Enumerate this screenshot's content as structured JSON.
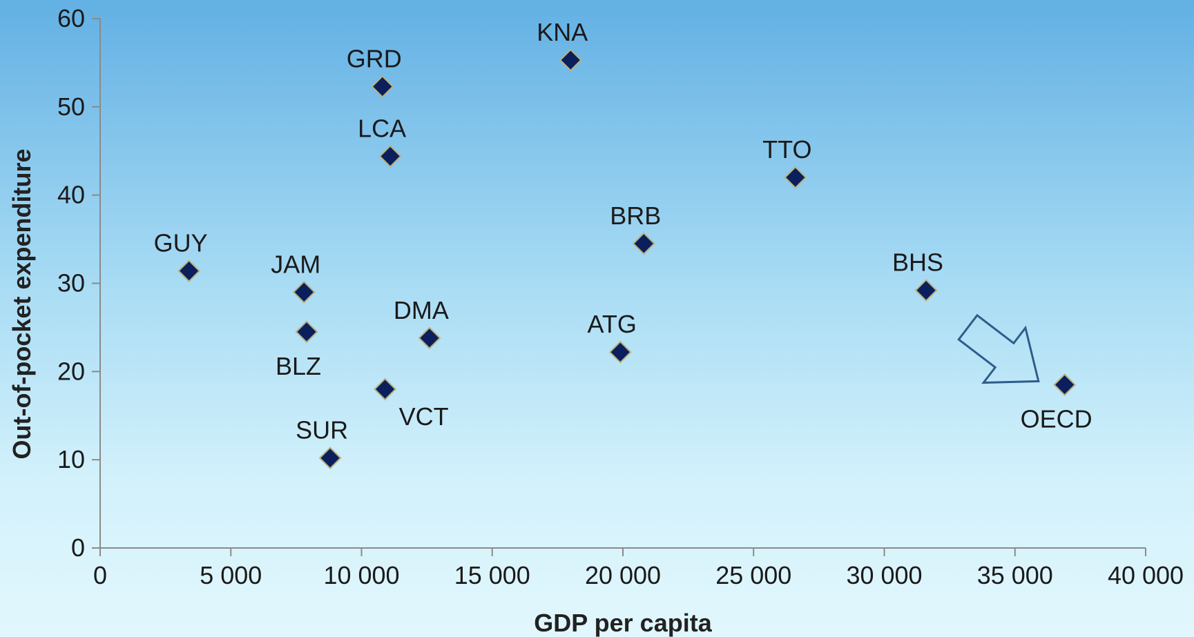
{
  "chart_data": {
    "type": "scatter",
    "xlabel": "GDP per capita",
    "ylabel": "Out-of-pocket expenditure",
    "xlim": [
      0,
      40000
    ],
    "ylim": [
      0,
      60
    ],
    "x_ticks": [
      0,
      5000,
      10000,
      15000,
      20000,
      25000,
      30000,
      35000,
      40000
    ],
    "x_tick_labels": [
      "0",
      "5 000",
      "10 000",
      "15 000",
      "20 000",
      "25 000",
      "30 000",
      "35 000",
      "40 000"
    ],
    "y_ticks": [
      0,
      10,
      20,
      30,
      40,
      50,
      60
    ],
    "y_tick_labels": [
      "0",
      "10",
      "20",
      "30",
      "40",
      "50",
      "60"
    ],
    "grid": false,
    "marker_color": "#0b1f5c",
    "marker_edge_color": "#b9b17f",
    "points": [
      {
        "label": "GUY",
        "x": 3400,
        "y": 31.4,
        "label_pos": "above"
      },
      {
        "label": "JAM",
        "x": 7800,
        "y": 29.0,
        "label_pos": "above"
      },
      {
        "label": "BLZ",
        "x": 7900,
        "y": 24.5,
        "label_pos": "below"
      },
      {
        "label": "SUR",
        "x": 8800,
        "y": 10.2,
        "label_pos": "above"
      },
      {
        "label": "GRD",
        "x": 10800,
        "y": 52.3,
        "label_pos": "above"
      },
      {
        "label": "LCA",
        "x": 11100,
        "y": 44.4,
        "label_pos": "above"
      },
      {
        "label": "VCT",
        "x": 10900,
        "y": 18.0,
        "label_pos": "below-right"
      },
      {
        "label": "DMA",
        "x": 12600,
        "y": 23.8,
        "label_pos": "above"
      },
      {
        "label": "KNA",
        "x": 18000,
        "y": 55.3,
        "label_pos": "above"
      },
      {
        "label": "ATG",
        "x": 19900,
        "y": 22.2,
        "label_pos": "above"
      },
      {
        "label": "BRB",
        "x": 20800,
        "y": 34.5,
        "label_pos": "above"
      },
      {
        "label": "TTO",
        "x": 26600,
        "y": 42.0,
        "label_pos": "above"
      },
      {
        "label": "BHS",
        "x": 31600,
        "y": 29.2,
        "label_pos": "above"
      },
      {
        "label": "OECD",
        "x": 36900,
        "y": 18.5,
        "label_pos": "below"
      }
    ],
    "arrow_annotation": {
      "from_x": 33200,
      "from_y": 25.0,
      "to_x": 35900,
      "to_y": 18.9,
      "color": "#2f5c8a"
    }
  }
}
